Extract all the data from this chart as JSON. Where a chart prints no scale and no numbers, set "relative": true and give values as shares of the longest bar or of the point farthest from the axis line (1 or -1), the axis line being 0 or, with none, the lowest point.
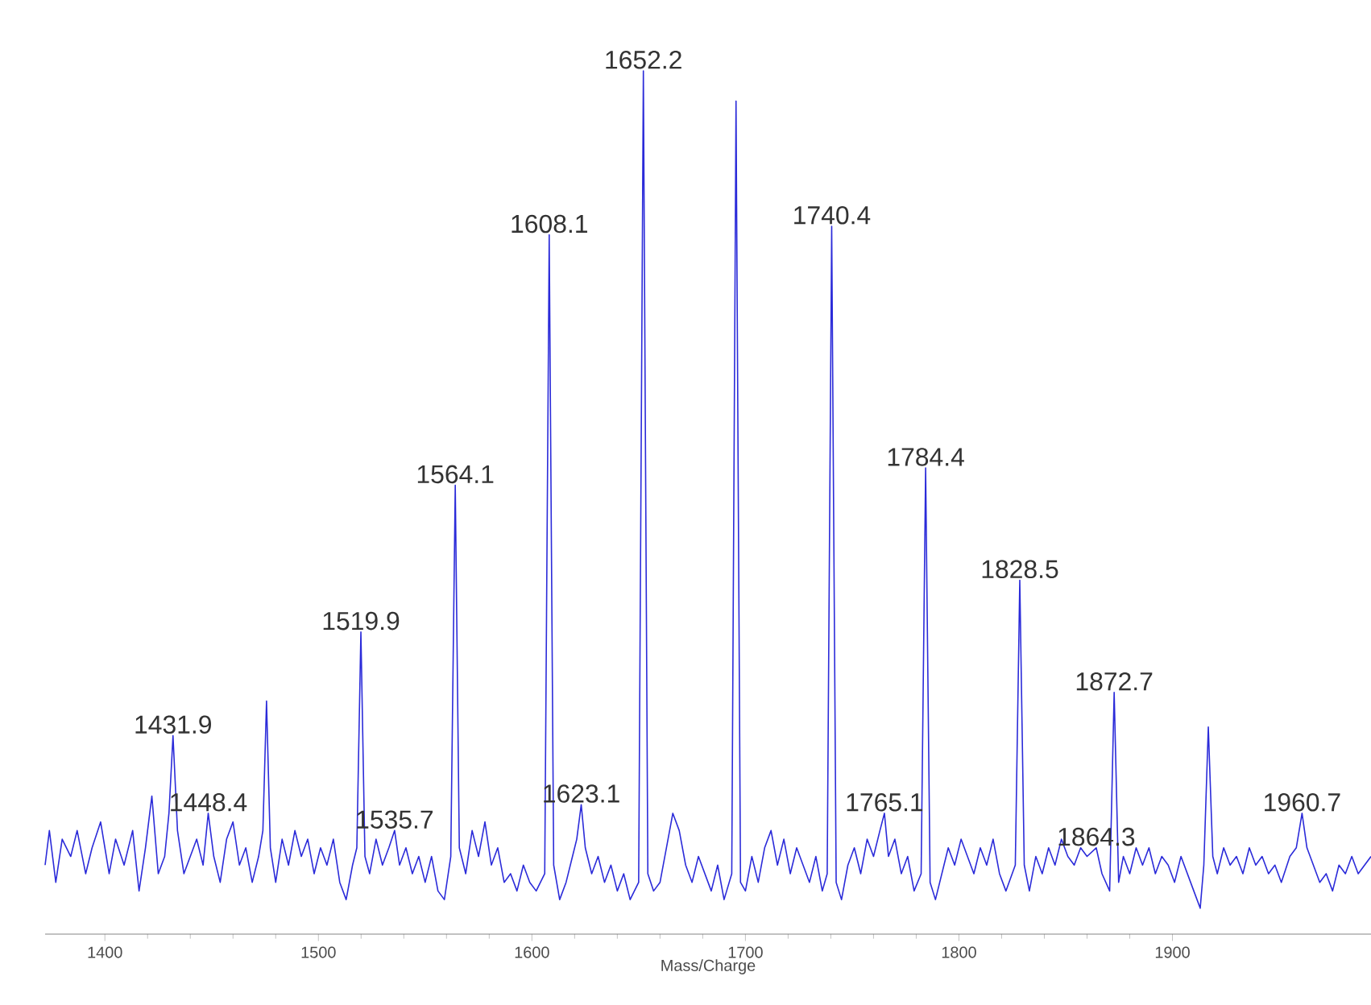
{
  "chart_data": {
    "type": "line",
    "relative": true,
    "xlabel": "Mass/Charge",
    "xlim": [
      1372,
      1993
    ],
    "xticks": [
      1400,
      1500,
      1600,
      1700,
      1800,
      1900
    ],
    "series": [
      {
        "color": "#2b2bd9",
        "x": [
          1372,
          1374,
          1377,
          1380,
          1384,
          1387,
          1391,
          1394,
          1398,
          1402,
          1405,
          1409,
          1413,
          1416,
          1419,
          1422,
          1425,
          1428,
          1430,
          1431.9,
          1434,
          1437,
          1440,
          1443,
          1446,
          1448.4,
          1451,
          1454,
          1457,
          1460,
          1463,
          1466,
          1469,
          1472,
          1474,
          1475.7,
          1477.5,
          1480,
          1483,
          1486,
          1489,
          1492,
          1495,
          1498,
          1501,
          1504,
          1507,
          1510,
          1513,
          1516,
          1518,
          1519.9,
          1521.8,
          1524,
          1527,
          1530,
          1533,
          1535.7,
          1538,
          1541,
          1544,
          1547,
          1550,
          1553,
          1556,
          1559,
          1562,
          1564.1,
          1566,
          1569,
          1572,
          1575,
          1578,
          1581,
          1584,
          1587,
          1590,
          1593,
          1596,
          1599,
          1602,
          1606,
          1608.1,
          1610.2,
          1613,
          1616,
          1619,
          1621,
          1623.1,
          1625,
          1628,
          1631,
          1634,
          1637,
          1640,
          1643,
          1646,
          1650,
          1652.2,
          1654.3,
          1657,
          1660,
          1663,
          1666,
          1669,
          1672,
          1675,
          1678,
          1681,
          1684,
          1687,
          1690,
          1693.6,
          1695.6,
          1697.7,
          1700,
          1703,
          1706,
          1709,
          1712,
          1715,
          1718,
          1721,
          1724,
          1727,
          1730,
          1733,
          1736,
          1738.3,
          1740.4,
          1742.5,
          1745,
          1748,
          1751,
          1754,
          1757,
          1760,
          1763,
          1765.1,
          1767,
          1770,
          1773,
          1776,
          1779,
          1782.3,
          1784.4,
          1786.5,
          1789,
          1792,
          1795,
          1798,
          1801,
          1804,
          1807,
          1810,
          1813,
          1816,
          1819,
          1822,
          1826.4,
          1828.5,
          1830.6,
          1833,
          1836,
          1839,
          1842,
          1845,
          1848,
          1851,
          1854,
          1857,
          1860,
          1864.3,
          1867,
          1870.6,
          1872.7,
          1874.8,
          1877,
          1880,
          1883,
          1886,
          1889,
          1892,
          1895,
          1898,
          1901,
          1904,
          1907,
          1910,
          1913,
          1914.7,
          1916.8,
          1918.9,
          1921,
          1924,
          1927,
          1930,
          1933,
          1936,
          1939,
          1942,
          1945,
          1948,
          1951,
          1955,
          1958,
          1960.7,
          1963,
          1966,
          1969,
          1972,
          1975,
          1978,
          1981,
          1984,
          1987,
          1990,
          1993
        ],
        "values": [
          0.08,
          0.12,
          0.06,
          0.11,
          0.09,
          0.12,
          0.07,
          0.1,
          0.13,
          0.07,
          0.11,
          0.08,
          0.12,
          0.05,
          0.1,
          0.16,
          0.07,
          0.09,
          0.14,
          0.23,
          0.12,
          0.07,
          0.09,
          0.11,
          0.08,
          0.14,
          0.09,
          0.06,
          0.11,
          0.13,
          0.08,
          0.1,
          0.06,
          0.09,
          0.12,
          0.27,
          0.1,
          0.06,
          0.11,
          0.08,
          0.12,
          0.09,
          0.11,
          0.07,
          0.1,
          0.08,
          0.11,
          0.06,
          0.04,
          0.08,
          0.1,
          0.35,
          0.09,
          0.07,
          0.11,
          0.08,
          0.1,
          0.12,
          0.08,
          0.1,
          0.07,
          0.09,
          0.06,
          0.09,
          0.05,
          0.04,
          0.09,
          0.52,
          0.1,
          0.07,
          0.12,
          0.09,
          0.13,
          0.08,
          0.1,
          0.06,
          0.07,
          0.05,
          0.08,
          0.06,
          0.05,
          0.07,
          0.81,
          0.08,
          0.04,
          0.06,
          0.09,
          0.11,
          0.15,
          0.1,
          0.07,
          0.09,
          0.06,
          0.08,
          0.05,
          0.07,
          0.04,
          0.06,
          1.0,
          0.07,
          0.05,
          0.06,
          0.1,
          0.14,
          0.12,
          0.08,
          0.06,
          0.09,
          0.07,
          0.05,
          0.08,
          0.04,
          0.07,
          0.965,
          0.06,
          0.05,
          0.09,
          0.06,
          0.1,
          0.12,
          0.08,
          0.11,
          0.07,
          0.1,
          0.08,
          0.06,
          0.09,
          0.05,
          0.07,
          0.82,
          0.06,
          0.04,
          0.08,
          0.1,
          0.07,
          0.11,
          0.09,
          0.12,
          0.14,
          0.09,
          0.11,
          0.07,
          0.09,
          0.05,
          0.07,
          0.54,
          0.06,
          0.04,
          0.07,
          0.1,
          0.08,
          0.11,
          0.09,
          0.07,
          0.1,
          0.08,
          0.11,
          0.07,
          0.05,
          0.08,
          0.41,
          0.08,
          0.05,
          0.09,
          0.07,
          0.1,
          0.08,
          0.11,
          0.09,
          0.08,
          0.1,
          0.09,
          0.1,
          0.07,
          0.05,
          0.28,
          0.06,
          0.09,
          0.07,
          0.1,
          0.08,
          0.1,
          0.07,
          0.09,
          0.08,
          0.06,
          0.09,
          0.07,
          0.05,
          0.03,
          0.08,
          0.24,
          0.09,
          0.07,
          0.1,
          0.08,
          0.09,
          0.07,
          0.1,
          0.08,
          0.09,
          0.07,
          0.08,
          0.06,
          0.09,
          0.1,
          0.14,
          0.1,
          0.08,
          0.06,
          0.07,
          0.05,
          0.08,
          0.07,
          0.09,
          0.07,
          0.08,
          0.09
        ]
      }
    ],
    "annotations": [
      {
        "text": "1431.9",
        "x": 1431.9,
        "y": 0.23
      },
      {
        "text": "1448.4",
        "x": 1448.4,
        "y": 0.14
      },
      {
        "text": "1519.9",
        "x": 1519.9,
        "y": 0.35
      },
      {
        "text": "1535.7",
        "x": 1535.7,
        "y": 0.12
      },
      {
        "text": "1564.1",
        "x": 1564.1,
        "y": 0.52
      },
      {
        "text": "1608.1",
        "x": 1608.1,
        "y": 0.81
      },
      {
        "text": "1623.1",
        "x": 1623.1,
        "y": 0.15
      },
      {
        "text": "1652.2",
        "x": 1652.2,
        "y": 1.0
      },
      {
        "text": "1740.4",
        "x": 1740.4,
        "y": 0.82
      },
      {
        "text": "1765.1",
        "x": 1765.1,
        "y": 0.14
      },
      {
        "text": "1784.4",
        "x": 1784.4,
        "y": 0.54
      },
      {
        "text": "1828.5",
        "x": 1828.5,
        "y": 0.41
      },
      {
        "text": "1864.3",
        "x": 1864.3,
        "y": 0.1
      },
      {
        "text": "1872.7",
        "x": 1872.7,
        "y": 0.28
      },
      {
        "text": "1960.7",
        "x": 1960.7,
        "y": 0.14
      }
    ]
  }
}
